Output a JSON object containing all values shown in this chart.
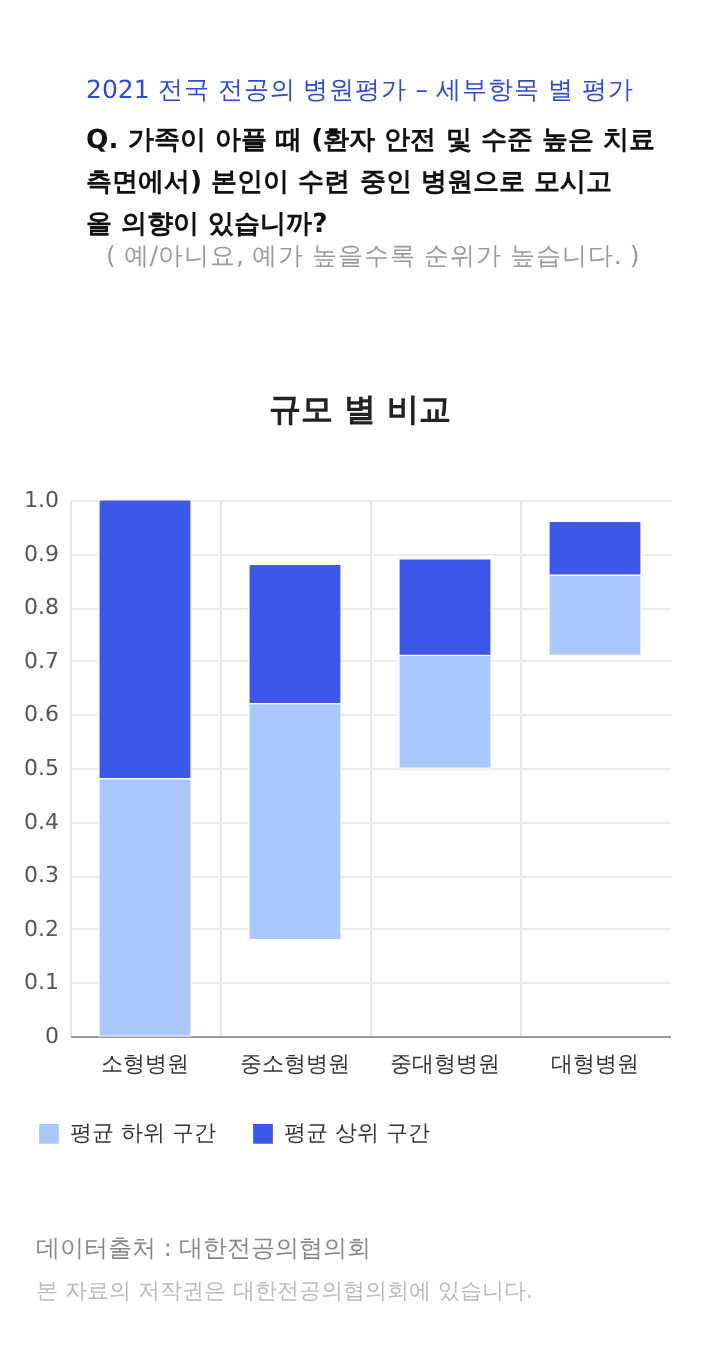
{
  "chart_data": {
    "type": "bar",
    "title": "규모 별 비교",
    "annotations": [
      "2021 전국 전공의 병원평가 – 세부항목 별 평가",
      "Q. 가족이 아플 때 (환자 안전 및 수준 높은 치료\n    측면에서) 본인이 수련 중인 병원으로 모시고\n    올 의향이 있습니까?",
      "( 예/아니요, 예가 높을수록 순위가 높습니다. )",
      "데이터출처 : 대한전공의협의회",
      "본 자료의 저작권은 대한전공의협의회에 있습니다."
    ],
    "categories": [
      "소형병원",
      "중소형병원",
      "중대형병원",
      "대형병원"
    ],
    "series": [
      {
        "name": "평균 하위 구간",
        "color": "#a9c9fc",
        "base": [
          0,
          0.18,
          0.5,
          0.71
        ],
        "values": [
          0.48,
          0.44,
          0.21,
          0.15
        ]
      },
      {
        "name": "평균 상위 구간",
        "color": "#3d58e8",
        "base": [
          0.48,
          0.62,
          0.71,
          0.86
        ],
        "values": [
          0.52,
          0.26,
          0.18,
          0.1
        ]
      }
    ],
    "ylim": [
      0,
      1
    ],
    "yticks": [
      {
        "value": 0,
        "label": "0"
      },
      0.1,
      0.2,
      0.3,
      0.4,
      0.5,
      0.6,
      0.7,
      0.8,
      0.9,
      {
        "value": 1,
        "label": "1.0"
      }
    ],
    "grid": true,
    "legend": "bottom left"
  }
}
